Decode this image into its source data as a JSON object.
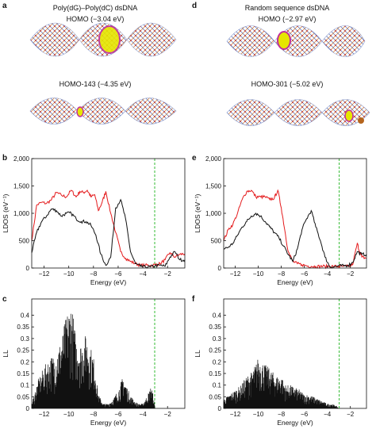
{
  "panel_letters": [
    "a",
    "b",
    "c",
    "d",
    "e",
    "f"
  ],
  "top": {
    "left": {
      "title": "Poly(dG)–Poly(dC) dsDNA",
      "homo_label": "HOMO (−3.04 eV)",
      "homo2_label": "HOMO-143 (−4.35 eV)"
    },
    "right": {
      "title": "Random sequence dsDNA",
      "homo_label": "HOMO (−2.97 eV)",
      "homo2_label": "HOMO-301 (−5.02 eV)"
    }
  },
  "colors": {
    "red": "#e41a1c",
    "black": "#111111",
    "green": "#33bb33",
    "dna_blue": "#6a7fc0",
    "dna_orange": "#d88b4a",
    "highlight": "#e6e600",
    "magenta": "#c0309a"
  },
  "chart_data": [
    {
      "id": "b",
      "type": "line",
      "xlabel": "Energy (eV)",
      "ylabel": "LDOS (eV⁻¹)",
      "xlim": [
        -13,
        -0.6
      ],
      "ylim": [
        0,
        2000
      ],
      "xticks": [
        -12,
        -10,
        -8,
        -6,
        -4,
        -2
      ],
      "yticks": [
        0,
        500,
        1000,
        1500,
        2000
      ],
      "ytick_labels": [
        "0",
        "500",
        "1,000",
        "1,500",
        "2,000"
      ],
      "vline": -3.04,
      "series": [
        {
          "color": "red",
          "x": [
            -13,
            -12.6,
            -12.2,
            -11.8,
            -11.4,
            -11.0,
            -10.6,
            -10.2,
            -9.8,
            -9.4,
            -9.1,
            -8.8,
            -8.5,
            -8.2,
            -7.9,
            -7.6,
            -7.3,
            -7.0,
            -6.6,
            -6.2,
            -5.8,
            -5.4,
            -5.0,
            -4.6,
            -4.2,
            -3.8,
            -3.4,
            -3.0,
            -2.6,
            -2.2,
            -1.8,
            -1.4,
            -1.0,
            -0.6
          ],
          "y": [
            500,
            1150,
            1200,
            1180,
            1250,
            1380,
            1330,
            1300,
            1420,
            1300,
            1400,
            1380,
            1420,
            1300,
            1340,
            1050,
            1200,
            1400,
            1000,
            650,
            300,
            180,
            120,
            80,
            50,
            50,
            50,
            60,
            80,
            150,
            280,
            200,
            250,
            260
          ]
        },
        {
          "color": "black",
          "x": [
            -13,
            -12.6,
            -12.2,
            -11.8,
            -11.4,
            -11.0,
            -10.6,
            -10.2,
            -9.8,
            -9.4,
            -9.0,
            -8.6,
            -8.2,
            -7.8,
            -7.4,
            -7.0,
            -6.6,
            -6.2,
            -5.8,
            -5.4,
            -5.0,
            -4.6,
            -4.2,
            -3.8,
            -3.4,
            -3.0,
            -2.6,
            -2.2,
            -1.8,
            -1.4,
            -1.0,
            -0.6
          ],
          "y": [
            280,
            650,
            850,
            950,
            1080,
            1050,
            950,
            1000,
            1000,
            900,
            850,
            850,
            780,
            600,
            250,
            50,
            200,
            1100,
            1250,
            900,
            300,
            80,
            30,
            20,
            20,
            40,
            50,
            30,
            200,
            300,
            150,
            150
          ]
        }
      ]
    },
    {
      "id": "e",
      "type": "line",
      "xlabel": "Energy (eV)",
      "ylabel": "LDOS (eV⁻¹)",
      "xlim": [
        -13,
        -0.6
      ],
      "ylim": [
        0,
        2000
      ],
      "xticks": [
        -12,
        -10,
        -8,
        -6,
        -4,
        -2
      ],
      "yticks": [
        0,
        500,
        1000,
        1500,
        2000
      ],
      "ytick_labels": [
        "0",
        "500",
        "1,000",
        "1,500",
        "2,000"
      ],
      "vline": -2.97,
      "series": [
        {
          "color": "red",
          "x": [
            -13,
            -12.6,
            -12.2,
            -11.8,
            -11.4,
            -11.0,
            -10.6,
            -10.2,
            -9.8,
            -9.4,
            -9.0,
            -8.6,
            -8.3,
            -8.0,
            -7.7,
            -7.4,
            -7.0,
            -6.6,
            -6.2,
            -5.8,
            -5.4,
            -5.0,
            -4.6,
            -4.2,
            -3.8,
            -3.4,
            -3.0,
            -2.6,
            -2.2,
            -1.8,
            -1.4,
            -1.2,
            -1.0,
            -0.6
          ],
          "y": [
            500,
            700,
            800,
            1000,
            1250,
            1400,
            1420,
            1300,
            1300,
            1300,
            1250,
            1280,
            1420,
            1100,
            700,
            300,
            120,
            80,
            60,
            40,
            30,
            30,
            30,
            30,
            30,
            30,
            30,
            30,
            30,
            60,
            450,
            300,
            200,
            180
          ]
        },
        {
          "color": "black",
          "x": [
            -13,
            -12.6,
            -12.2,
            -11.8,
            -11.4,
            -11.0,
            -10.6,
            -10.2,
            -9.8,
            -9.4,
            -9.0,
            -8.6,
            -8.2,
            -7.8,
            -7.4,
            -7.0,
            -6.6,
            -6.2,
            -5.8,
            -5.4,
            -5.0,
            -4.6,
            -4.2,
            -3.8,
            -3.4,
            -3.0,
            -2.6,
            -2.2,
            -1.8,
            -1.4,
            -1.0,
            -0.6
          ],
          "y": [
            350,
            380,
            450,
            600,
            750,
            850,
            950,
            1000,
            950,
            850,
            750,
            650,
            550,
            400,
            250,
            120,
            350,
            700,
            900,
            1050,
            750,
            500,
            200,
            30,
            20,
            40,
            40,
            50,
            100,
            300,
            250,
            250
          ]
        }
      ]
    },
    {
      "id": "c",
      "type": "bar",
      "xlabel": "Energy (eV)",
      "ylabel": "LL",
      "xlim": [
        -13,
        -0.6
      ],
      "ylim": [
        0,
        0.47
      ],
      "xticks": [
        -12,
        -10,
        -8,
        -6,
        -4,
        -2
      ],
      "yticks": [
        0,
        0.05,
        0.1,
        0.15,
        0.2,
        0.25,
        0.3,
        0.35,
        0.4
      ],
      "ytick_labels": [
        "0",
        "0.05",
        "0.1",
        "0.15",
        "0.2",
        "0.25",
        "0.3",
        "0.35",
        "0.4"
      ],
      "vline": -3.04,
      "envelope_x": [
        -13,
        -12.5,
        -12.0,
        -11.5,
        -11.0,
        -10.6,
        -10.2,
        -9.8,
        -9.4,
        -9.0,
        -8.6,
        -8.2,
        -7.9,
        -7.6,
        -7.2,
        -6.8,
        -6.4,
        -6.0,
        -5.6,
        -5.2,
        -4.8,
        -4.4,
        -4.0,
        -3.6,
        -3.3,
        -3.0,
        -2.6,
        -2.0,
        -1.0,
        -0.6
      ],
      "envelope_y": [
        0.02,
        0.12,
        0.18,
        0.22,
        0.24,
        0.3,
        0.4,
        0.46,
        0.3,
        0.28,
        0.32,
        0.26,
        0.2,
        0.06,
        0.02,
        0.02,
        0.04,
        0.08,
        0.14,
        0.08,
        0.04,
        0.02,
        0.02,
        0.06,
        0.1,
        0.0,
        0.0,
        0.0,
        0.0,
        0.0
      ]
    },
    {
      "id": "f",
      "type": "bar",
      "xlabel": "Energy (eV)",
      "ylabel": "LL",
      "xlim": [
        -13,
        -0.6
      ],
      "ylim": [
        0,
        0.47
      ],
      "xticks": [
        -12,
        -10,
        -8,
        -6,
        -4,
        -2
      ],
      "yticks": [
        0,
        0.05,
        0.1,
        0.15,
        0.2,
        0.25,
        0.3,
        0.35,
        0.4
      ],
      "ytick_labels": [
        "0",
        "0.05",
        "0.1",
        "0.15",
        "0.2",
        "0.25",
        "0.3",
        "0.35",
        "0.4"
      ],
      "vline": -2.97,
      "envelope_x": [
        -13,
        -12.5,
        -12.0,
        -11.5,
        -11.0,
        -10.5,
        -10.0,
        -9.6,
        -9.2,
        -8.8,
        -8.4,
        -8.0,
        -7.6,
        -7.2,
        -6.8,
        -6.4,
        -6.0,
        -5.6,
        -5.2,
        -4.8,
        -4.4,
        -4.0,
        -3.6,
        -3.2,
        -3.0,
        -2.6,
        -2.0,
        -1.0,
        -0.6
      ],
      "envelope_y": [
        0.04,
        0.06,
        0.08,
        0.1,
        0.14,
        0.16,
        0.22,
        0.2,
        0.18,
        0.16,
        0.14,
        0.14,
        0.1,
        0.1,
        0.09,
        0.08,
        0.06,
        0.06,
        0.05,
        0.04,
        0.03,
        0.02,
        0.02,
        0.01,
        0.0,
        0.0,
        0.0,
        0.0,
        0.0
      ]
    }
  ]
}
